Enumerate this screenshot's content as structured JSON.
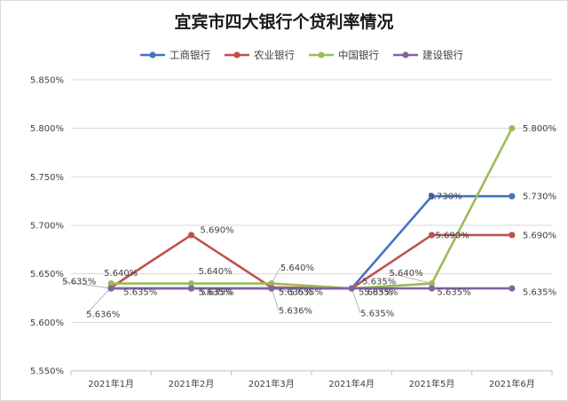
{
  "chart_data": {
    "type": "line",
    "title": "宜宾市四大银行个贷利率情况",
    "categories": [
      "2021年1月",
      "2021年2月",
      "2021年3月",
      "2021年4月",
      "2021年5月",
      "2021年6月"
    ],
    "ylim": [
      5.55,
      5.85
    ],
    "yticks": [
      "5.550%",
      "5.600%",
      "5.650%",
      "5.700%",
      "5.750%",
      "5.800%",
      "5.850%"
    ],
    "grid": true,
    "legend_position": "top",
    "series": [
      {
        "name": "工商银行",
        "color": "#4472C4",
        "values": [
          5.635,
          5.635,
          5.635,
          5.635,
          5.73,
          5.73
        ],
        "labels": [
          "5.635%",
          "5.635%",
          "5.635%",
          "5.635%",
          "5.730%",
          "5.730%"
        ]
      },
      {
        "name": "农业银行",
        "color": "#C0504D",
        "values": [
          5.636,
          5.69,
          5.636,
          5.635,
          5.69,
          5.69
        ],
        "labels": [
          "5.636%",
          "5.690%",
          "5.636%",
          "5.635%",
          "5.690%",
          "5.690%"
        ]
      },
      {
        "name": "中国银行",
        "color": "#9BBB59",
        "values": [
          5.64,
          5.64,
          5.64,
          5.635,
          5.64,
          5.8
        ],
        "labels": [
          "5.640%",
          "5.640%",
          "5.640%",
          "5.635%",
          "5.640%",
          "5.800%"
        ]
      },
      {
        "name": "建设银行",
        "color": "#8064A2",
        "values": [
          5.635,
          5.635,
          5.635,
          5.635,
          5.635,
          5.635
        ],
        "labels": [
          "5.635%",
          "5.635%",
          "5.635%",
          "5.635%",
          "5.635%",
          "5.635%"
        ]
      }
    ]
  }
}
